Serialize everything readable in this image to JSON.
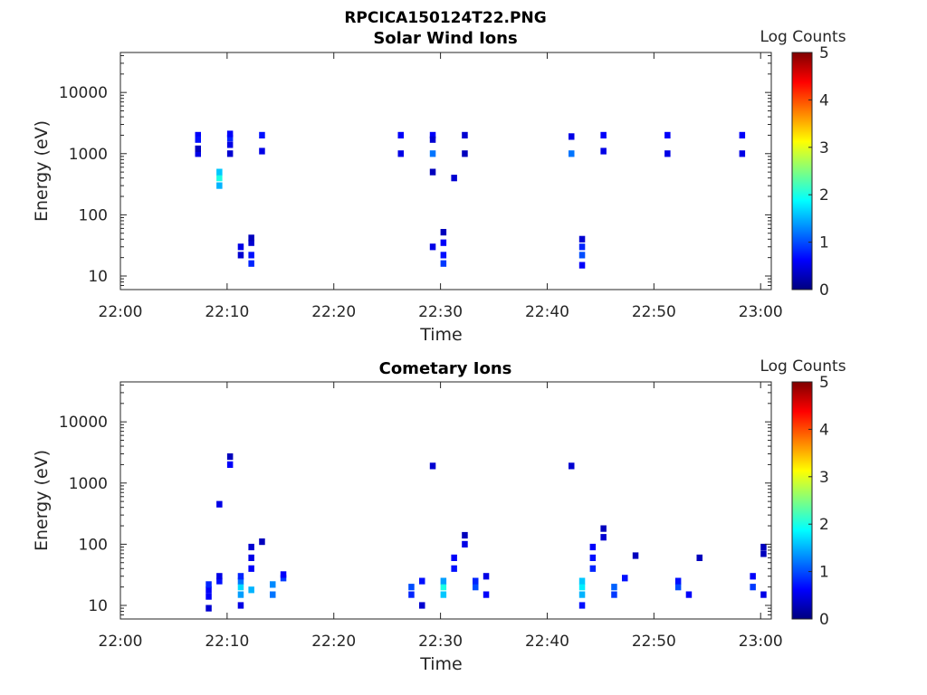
{
  "figure_title": "RPCICA150124T22.PNG",
  "chart_data": [
    {
      "type": "heatmap",
      "title": "Solar Wind Ions",
      "xlabel": "Time",
      "ylabel": "Energy (eV)",
      "x_range": [
        "22:00",
        "23:01"
      ],
      "x_ticks": [
        "22:00",
        "22:10",
        "22:20",
        "22:30",
        "22:40",
        "22:50",
        "23:00"
      ],
      "y_scale": "log",
      "ylim": [
        6,
        45000
      ],
      "y_ticks": [
        "10",
        "100",
        "1000",
        "10000"
      ],
      "colorbar": {
        "label": "Log Counts",
        "range": [
          0,
          5
        ],
        "ticks": [
          "0",
          "1",
          "2",
          "3",
          "4",
          "5"
        ],
        "colormap": "jet"
      },
      "cells": [
        [
          "22:07",
          2000,
          0.6
        ],
        [
          "22:07",
          1700,
          0.7
        ],
        [
          "22:07",
          1000,
          0.5
        ],
        [
          "22:07",
          1200,
          0.3
        ],
        [
          "22:09",
          300,
          1.5
        ],
        [
          "22:09",
          400,
          2.0
        ],
        [
          "22:09",
          500,
          1.6
        ],
        [
          "22:10",
          1800,
          0.8
        ],
        [
          "22:10",
          2100,
          0.6
        ],
        [
          "22:10",
          1400,
          0.5
        ],
        [
          "22:10",
          1000,
          0.4
        ],
        [
          "22:11",
          30,
          0.5
        ],
        [
          "22:11",
          22,
          0.4
        ],
        [
          "22:12",
          16,
          0.8
        ],
        [
          "22:12",
          22,
          0.7
        ],
        [
          "22:12",
          35,
          0.4
        ],
        [
          "22:12",
          42,
          0.3
        ],
        [
          "22:13",
          2000,
          0.7
        ],
        [
          "22:13",
          1100,
          0.5
        ],
        [
          "22:26",
          2000,
          0.6
        ],
        [
          "22:26",
          1000,
          0.5
        ],
        [
          "22:29",
          2000,
          0.6
        ],
        [
          "22:29",
          1700,
          0.4
        ],
        [
          "22:29",
          1000,
          1.2
        ],
        [
          "22:29",
          500,
          0.3
        ],
        [
          "22:29",
          30,
          0.5
        ],
        [
          "22:30",
          22,
          0.7
        ],
        [
          "22:30",
          16,
          0.9
        ],
        [
          "22:30",
          35,
          0.6
        ],
        [
          "22:30",
          52,
          0.3
        ],
        [
          "22:31",
          400,
          0.4
        ],
        [
          "22:32",
          2000,
          0.4
        ],
        [
          "22:32",
          1000,
          0.3
        ],
        [
          "22:42",
          1900,
          0.5
        ],
        [
          "22:42",
          1000,
          1.2
        ],
        [
          "22:43",
          15,
          0.6
        ],
        [
          "22:43",
          22,
          1.0
        ],
        [
          "22:43",
          30,
          0.8
        ],
        [
          "22:43",
          40,
          0.4
        ],
        [
          "22:45",
          2000,
          0.6
        ],
        [
          "22:45",
          1100,
          0.5
        ],
        [
          "22:51",
          2000,
          0.6
        ],
        [
          "22:51",
          1000,
          0.5
        ],
        [
          "22:58",
          2000,
          0.6
        ],
        [
          "22:58",
          1000,
          0.5
        ]
      ]
    },
    {
      "type": "heatmap",
      "title": "Cometary Ions",
      "xlabel": "Time",
      "ylabel": "Energy (eV)",
      "x_range": [
        "22:00",
        "23:01"
      ],
      "x_ticks": [
        "22:00",
        "22:10",
        "22:20",
        "22:30",
        "22:40",
        "22:50",
        "23:00"
      ],
      "y_scale": "log",
      "ylim": [
        6,
        45000
      ],
      "y_ticks": [
        "10",
        "100",
        "1000",
        "10000"
      ],
      "colorbar": {
        "label": "Log Counts",
        "range": [
          0,
          5
        ],
        "ticks": [
          "0",
          "1",
          "2",
          "3",
          "4",
          "5"
        ],
        "colormap": "jet"
      },
      "cells": [
        [
          "22:08",
          18,
          0.6
        ],
        [
          "22:08",
          22,
          0.8
        ],
        [
          "22:08",
          14,
          0.6
        ],
        [
          "22:08",
          9,
          0.4
        ],
        [
          "22:09",
          25,
          0.7
        ],
        [
          "22:09",
          30,
          0.5
        ],
        [
          "22:09",
          450,
          0.5
        ],
        [
          "22:10",
          2000,
          0.6
        ],
        [
          "22:10",
          2700,
          0.3
        ],
        [
          "22:11",
          15,
          1.4
        ],
        [
          "22:11",
          20,
          1.7
        ],
        [
          "22:11",
          25,
          1.2
        ],
        [
          "22:11",
          30,
          0.8
        ],
        [
          "22:11",
          10,
          0.5
        ],
        [
          "22:12",
          18,
          1.5
        ],
        [
          "22:12",
          40,
          0.6
        ],
        [
          "22:12",
          60,
          0.5
        ],
        [
          "22:12",
          90,
          0.4
        ],
        [
          "22:13",
          110,
          0.3
        ],
        [
          "22:14",
          15,
          1.2
        ],
        [
          "22:14",
          22,
          1.3
        ],
        [
          "22:15",
          28,
          0.9
        ],
        [
          "22:15",
          32,
          0.6
        ],
        [
          "22:27",
          20,
          1.0
        ],
        [
          "22:27",
          15,
          0.8
        ],
        [
          "22:28",
          25,
          0.7
        ],
        [
          "22:28",
          10,
          0.4
        ],
        [
          "22:29",
          1900,
          0.4
        ],
        [
          "22:30",
          15,
          1.6
        ],
        [
          "22:30",
          20,
          2.0
        ],
        [
          "22:30",
          25,
          1.4
        ],
        [
          "22:31",
          40,
          0.7
        ],
        [
          "22:31",
          60,
          0.6
        ],
        [
          "22:32",
          100,
          0.5
        ],
        [
          "22:32",
          140,
          0.3
        ],
        [
          "22:33",
          20,
          1.0
        ],
        [
          "22:33",
          25,
          0.8
        ],
        [
          "22:34",
          15,
          0.6
        ],
        [
          "22:34",
          30,
          0.5
        ],
        [
          "22:42",
          1900,
          0.4
        ],
        [
          "22:43",
          15,
          1.5
        ],
        [
          "22:43",
          20,
          1.8
        ],
        [
          "22:43",
          25,
          1.6
        ],
        [
          "22:43",
          10,
          0.7
        ],
        [
          "22:44",
          40,
          0.8
        ],
        [
          "22:44",
          60,
          0.7
        ],
        [
          "22:44",
          90,
          0.6
        ],
        [
          "22:45",
          130,
          0.4
        ],
        [
          "22:45",
          180,
          0.3
        ],
        [
          "22:46",
          20,
          1.1
        ],
        [
          "22:46",
          15,
          0.9
        ],
        [
          "22:47",
          28,
          0.7
        ],
        [
          "22:48",
          65,
          0.3
        ],
        [
          "22:52",
          20,
          1.0
        ],
        [
          "22:52",
          25,
          0.7
        ],
        [
          "22:53",
          15,
          0.6
        ],
        [
          "22:54",
          60,
          0.3
        ],
        [
          "22:59",
          20,
          0.9
        ],
        [
          "22:59",
          30,
          0.6
        ],
        [
          "23:00",
          15,
          0.5
        ],
        [
          "23:00",
          70,
          0.3
        ],
        [
          "23:00",
          90,
          0.3
        ]
      ]
    }
  ]
}
